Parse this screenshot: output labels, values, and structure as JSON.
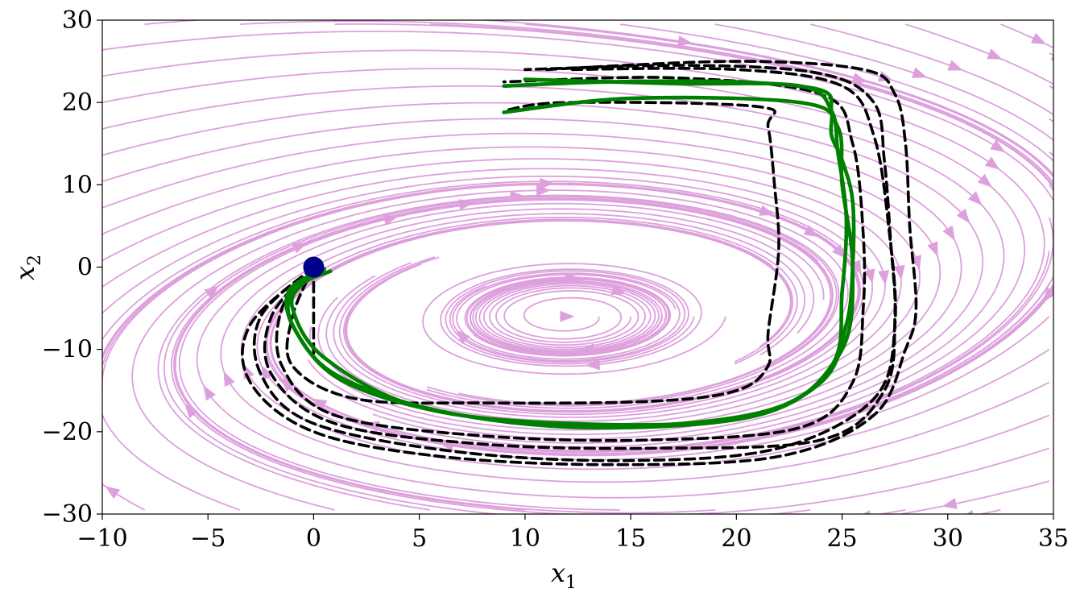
{
  "chart_data": {
    "type": "line",
    "title": "",
    "xlabel": "x",
    "xlabel_sub": "1",
    "ylabel": "x",
    "ylabel_sub": "2",
    "xlim": [
      -10,
      35
    ],
    "ylim": [
      -30,
      30
    ],
    "xticks": [
      -10,
      -5,
      0,
      5,
      10,
      15,
      20,
      25,
      30,
      35
    ],
    "yticks": [
      -30,
      -20,
      -10,
      0,
      10,
      20,
      30
    ],
    "xtick_labels": [
      "−10",
      "−5",
      "0",
      "5",
      "10",
      "15",
      "20",
      "25",
      "30",
      "35"
    ],
    "ytick_labels": [
      "−30",
      "−20",
      "−10",
      "0",
      "10",
      "20",
      "30"
    ],
    "grid": false,
    "legend": "none",
    "colors": {
      "streamline": "#dda0dd",
      "trajectory_green": "#008000",
      "trajectory_dashed": "#000000",
      "start_point": "#00008b"
    },
    "start_point": {
      "x": 0,
      "y": 0
    },
    "series": [
      {
        "style": "dashed",
        "x": [
          0,
          -1,
          -1,
          2,
          8,
          16,
          20,
          21.5,
          21.5,
          22,
          21.8,
          21.5,
          21,
          12,
          9
        ],
        "y": [
          0,
          -6,
          -12,
          -16,
          -16.5,
          -16.3,
          -15,
          -12,
          -8,
          2,
          10,
          17,
          19.5,
          20,
          19
        ]
      },
      {
        "style": "dashed",
        "x": [
          0,
          -3,
          -3,
          0,
          6,
          14,
          22,
          26.5,
          28,
          28.5,
          28.2,
          28,
          27.5,
          26,
          20,
          11
        ],
        "y": [
          0,
          -7,
          -14,
          -20,
          -23,
          -24,
          -23,
          -18,
          -10,
          -5,
          5,
          15,
          21,
          24,
          25,
          24
        ]
      },
      {
        "style": "dashed",
        "x": [
          0,
          -2,
          -2,
          1,
          8,
          16,
          24,
          27,
          27.5,
          27.3,
          27,
          26.5,
          24,
          18,
          10
        ],
        "y": [
          0,
          -6,
          -13,
          -19,
          -21.5,
          -22,
          -21,
          -15,
          -6,
          3,
          13,
          20,
          23.5,
          24.5,
          24
        ]
      },
      {
        "style": "dashed",
        "x": [
          0,
          -1.5,
          -1.5,
          1,
          8,
          16,
          23,
          25.5,
          26,
          26,
          25.5,
          24,
          17,
          9
        ],
        "y": [
          0,
          -5,
          -12,
          -18,
          -20.5,
          -21,
          -19.5,
          -14,
          -5,
          4,
          15,
          21,
          23,
          22.5
        ]
      },
      {
        "style": "dashed",
        "x": [
          0,
          -2.5,
          -2.5,
          0,
          7,
          15,
          22,
          26.5,
          27.5,
          27.2,
          26.5,
          25,
          20,
          12
        ],
        "y": [
          0,
          -6,
          -13,
          -19,
          -22.5,
          -23.5,
          -22,
          -16,
          -7,
          5,
          16,
          22,
          24,
          24
        ]
      },
      {
        "style": "dashed",
        "x": [
          0,
          0,
          0
        ],
        "y": [
          0,
          -5,
          -11
        ]
      },
      {
        "style": "solid",
        "x": [
          0.8,
          -0.5,
          -1,
          0.5,
          5,
          12,
          20,
          24,
          25.2,
          25.5,
          25.5,
          25,
          24.5,
          24.5,
          24,
          20,
          14,
          9
        ],
        "y": [
          -0.5,
          -2,
          -5,
          -11,
          -17,
          -19,
          -18.5,
          -14,
          -7,
          0,
          8,
          13,
          16,
          19,
          21.5,
          22.5,
          22.5,
          22
        ]
      },
      {
        "style": "solid",
        "x": [
          0.5,
          -1,
          -1,
          1,
          6,
          13,
          21,
          24.5,
          25,
          25.2,
          24.8,
          24.5,
          23,
          17,
          10
        ],
        "y": [
          -0.3,
          -3,
          -7,
          -13,
          -17.5,
          -19.5,
          -18,
          -12,
          -3,
          6,
          14,
          19,
          22,
          22.3,
          22.8
        ]
      },
      {
        "style": "solid",
        "x": [
          0.5,
          -1.2,
          -0.8,
          1.5,
          7,
          15,
          22,
          25,
          25.5,
          25,
          24.8,
          23,
          15,
          9
        ],
        "y": [
          -0.2,
          -3,
          -8,
          -14,
          -18,
          -19.3,
          -17,
          -10,
          0,
          10,
          17,
          20,
          20.5,
          18.8
        ]
      }
    ]
  }
}
